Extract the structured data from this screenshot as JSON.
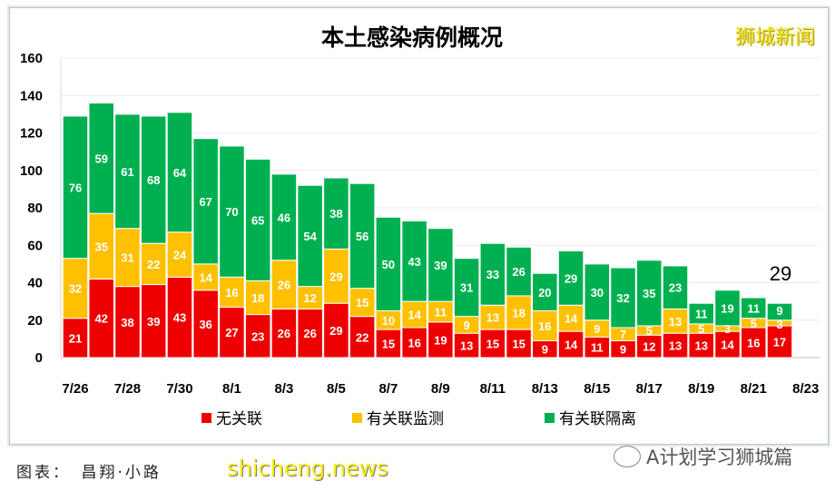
{
  "chart_data": {
    "type": "bar",
    "stacked": true,
    "title": "本土感染病例概况",
    "categories": [
      "7/26",
      "7/27",
      "7/28",
      "7/29",
      "7/30",
      "7/31",
      "8/1",
      "8/2",
      "8/3",
      "8/4",
      "8/5",
      "8/6",
      "8/7",
      "8/8",
      "8/9",
      "8/10",
      "8/11",
      "8/12",
      "8/13",
      "8/14",
      "8/15",
      "8/16",
      "8/17",
      "8/18",
      "8/19",
      "8/20",
      "8/21",
      "8/22",
      "8/23"
    ],
    "tick_labels": [
      "7/26",
      "7/28",
      "7/30",
      "8/1",
      "8/3",
      "8/5",
      "8/7",
      "8/9",
      "8/11",
      "8/13",
      "8/15",
      "8/17",
      "8/19",
      "8/21",
      "8/23"
    ],
    "series": [
      {
        "name": "无关联",
        "color": "#ee0000",
        "values": [
          21,
          42,
          38,
          39,
          43,
          36,
          27,
          23,
          26,
          26,
          29,
          22,
          15,
          16,
          19,
          13,
          15,
          15,
          9,
          14,
          11,
          9,
          12,
          13,
          13,
          14,
          16,
          17,
          null
        ]
      },
      {
        "name": "有关联监测",
        "color": "#ffc000",
        "values": [
          32,
          35,
          31,
          22,
          24,
          14,
          16,
          18,
          26,
          12,
          29,
          15,
          10,
          14,
          11,
          9,
          13,
          18,
          16,
          14,
          9,
          7,
          5,
          13,
          5,
          3,
          5,
          3,
          null
        ]
      },
      {
        "name": "有关联隔离",
        "color": "#00b050",
        "values": [
          76,
          59,
          61,
          68,
          64,
          67,
          70,
          65,
          46,
          54,
          38,
          56,
          50,
          43,
          39,
          31,
          33,
          26,
          20,
          29,
          30,
          32,
          35,
          23,
          11,
          19,
          11,
          9,
          null
        ]
      }
    ],
    "ylim": [
      0,
      160
    ],
    "yticks": [
      0,
      20,
      40,
      60,
      80,
      100,
      120,
      140,
      160
    ],
    "grid": true,
    "legend": "bottom",
    "annotation": "29",
    "xlabel": "",
    "ylabel": ""
  },
  "watermark": "狮城新闻",
  "credit": "图表：　昌翔·小路",
  "site_mark": "shicheng.news",
  "wechat_account": "A计划学习狮城篇"
}
